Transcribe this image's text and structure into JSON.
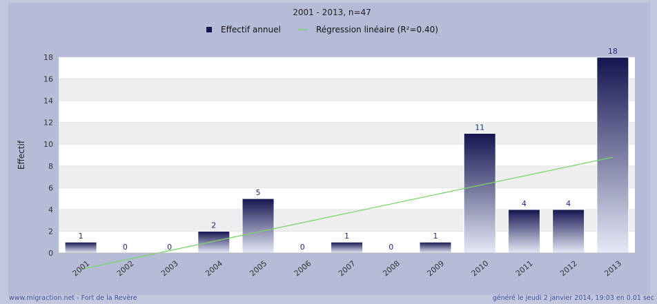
{
  "chart_data": {
    "type": "bar",
    "title": "2001 - 2013, n=47",
    "ylabel": "Effectif",
    "xlabel": "",
    "categories": [
      "2001",
      "2002",
      "2003",
      "2004",
      "2005",
      "2006",
      "2007",
      "2008",
      "2009",
      "2010",
      "2011",
      "2012",
      "2013"
    ],
    "series": [
      {
        "name": "Effectif annuel",
        "values": [
          1,
          0,
          0,
          2,
          5,
          0,
          1,
          0,
          1,
          11,
          4,
          4,
          18
        ]
      }
    ],
    "trendline": {
      "name": "Régression linéaire (R²=0.40)",
      "start": -1.5,
      "end": 8.8
    },
    "ylim": [
      0,
      18
    ],
    "yticks": [
      "0",
      "2",
      "4",
      "6",
      "8",
      "10",
      "12",
      "14",
      "16",
      "18"
    ],
    "legend_position": "top",
    "grid": true,
    "colors": {
      "bar_top": "#14144f",
      "bar_bottom": "#e6e9f7",
      "trendline": "#7cd36a",
      "band": "#eeeeee"
    }
  },
  "footer": {
    "left": "www.migraction.net - Fort de la Revère",
    "right": "généré le jeudi 2 janvier 2014, 19:03 en 0.01 sec"
  }
}
